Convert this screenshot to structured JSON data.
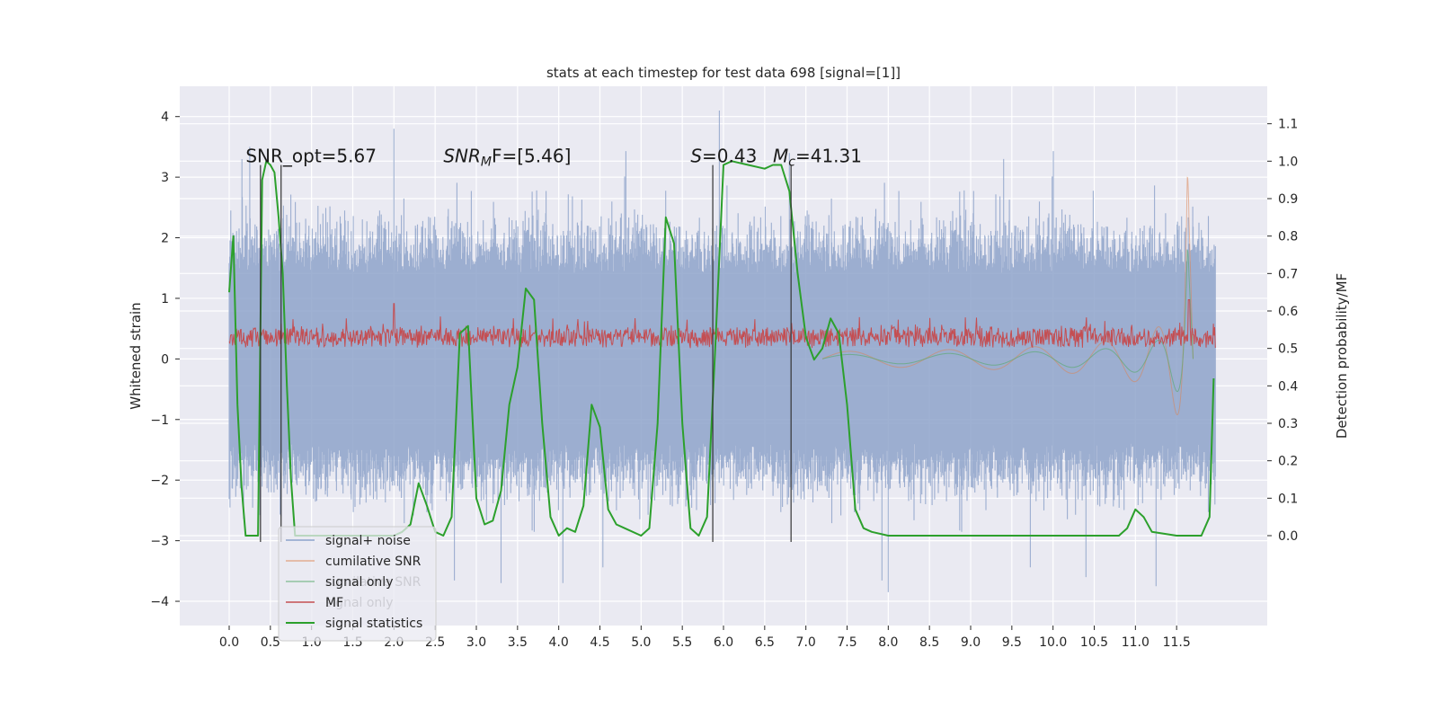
{
  "chart_data": {
    "type": "line",
    "title": "stats at each timestep for test data 698 [signal=[1]]",
    "ylabel": "Whitened strain",
    "y2label": "Detection probability/MF",
    "xlim": [
      -0.6,
      12.6
    ],
    "ylim": [
      -4.4,
      4.5
    ],
    "y2lim": [
      -0.24,
      1.2
    ],
    "grid": true,
    "x_ticks": [
      "0.0",
      "0.5",
      "1.0",
      "1.5",
      "2.0",
      "2.5",
      "3.0",
      "3.5",
      "4.0",
      "4.5",
      "5.0",
      "5.5",
      "6.0",
      "6.5",
      "7.0",
      "7.5",
      "8.0",
      "8.5",
      "9.0",
      "9.5",
      "10.0",
      "10.5",
      "11.0",
      "11.5"
    ],
    "y_ticks": [
      "4",
      "3",
      "2",
      "1",
      "0",
      "−1",
      "−2",
      "−3",
      "−4"
    ],
    "y2_ticks": [
      "1.1",
      "1.0",
      "0.9",
      "0.8",
      "0.7",
      "0.6",
      "0.5",
      "0.4",
      "0.3",
      "0.2",
      "0.1",
      "0.0"
    ],
    "annotations": [
      {
        "text": "SNR_opt=5.67",
        "x": 0.2
      },
      {
        "text": "SNR",
        "sub": "M",
        "suffix": "F=[5.46]",
        "italic": true,
        "x": 2.6
      },
      {
        "text": "S",
        "suffix": "=0.43",
        "italic": true,
        "x": 5.6
      },
      {
        "text": "M",
        "sub": "c",
        "suffix": "=41.31",
        "italic": true,
        "x": 6.6
      }
    ],
    "vlines": [
      0.38,
      0.63,
      5.87,
      6.82
    ],
    "series": [
      {
        "name": "signal+ noise",
        "color": "#4c72b0",
        "description": "noise band roughly between -2.6 and 2.6, spikes up to 4.1 near x=5.9"
      },
      {
        "name": "cumilative SNR",
        "color": "#dd8452",
        "description": "chirp-like oscillation growing toward merger near x=11.65"
      },
      {
        "name": "signal only",
        "color": "#55a868",
        "description": "oscillation with growing amplitude toward x=11.65"
      },
      {
        "name": "MF",
        "color": "#c44e52",
        "description": "matched filter output ~0.5 to 0.6 on right axis"
      },
      {
        "name": "signal statistics",
        "color": "#2ca02c",
        "axis": "right",
        "x": [
          0.0,
          0.05,
          0.1,
          0.15,
          0.2,
          0.25,
          0.3,
          0.35,
          0.4,
          0.45,
          0.5,
          0.55,
          0.6,
          0.65,
          0.7,
          0.75,
          0.8,
          0.9,
          1.0,
          1.2,
          1.4,
          1.6,
          1.8,
          2.0,
          2.1,
          2.2,
          2.3,
          2.4,
          2.5,
          2.6,
          2.7,
          2.8,
          2.9,
          3.0,
          3.1,
          3.2,
          3.3,
          3.4,
          3.5,
          3.6,
          3.7,
          3.8,
          3.9,
          4.0,
          4.1,
          4.2,
          4.3,
          4.4,
          4.5,
          4.6,
          4.7,
          4.8,
          5.0,
          5.1,
          5.2,
          5.3,
          5.4,
          5.5,
          5.6,
          5.7,
          5.8,
          5.9,
          6.0,
          6.1,
          6.3,
          6.5,
          6.6,
          6.7,
          6.8,
          6.9,
          7.0,
          7.1,
          7.2,
          7.3,
          7.4,
          7.5,
          7.6,
          7.7,
          7.8,
          8.0,
          8.5,
          9.0,
          10.0,
          10.5,
          10.8,
          10.9,
          11.0,
          11.1,
          11.2,
          11.5,
          11.7,
          11.8,
          11.9,
          11.95
        ],
        "y": [
          0.65,
          0.8,
          0.35,
          0.13,
          0.0,
          0.0,
          0.0,
          0.0,
          0.95,
          1.0,
          0.99,
          0.97,
          0.85,
          0.7,
          0.4,
          0.15,
          0.0,
          0.0,
          0.0,
          0.0,
          0.0,
          0.0,
          0.0,
          0.0,
          0.01,
          0.03,
          0.14,
          0.08,
          0.01,
          0.0,
          0.05,
          0.54,
          0.56,
          0.1,
          0.03,
          0.04,
          0.12,
          0.35,
          0.45,
          0.66,
          0.63,
          0.3,
          0.05,
          0.0,
          0.02,
          0.01,
          0.08,
          0.35,
          0.29,
          0.07,
          0.03,
          0.02,
          0.0,
          0.02,
          0.3,
          0.85,
          0.78,
          0.3,
          0.02,
          0.0,
          0.05,
          0.5,
          0.99,
          1.0,
          0.99,
          0.98,
          0.99,
          0.99,
          0.92,
          0.7,
          0.53,
          0.47,
          0.5,
          0.58,
          0.54,
          0.35,
          0.07,
          0.02,
          0.01,
          0.0,
          0.0,
          0.0,
          0.0,
          0.0,
          0.0,
          0.02,
          0.07,
          0.05,
          0.01,
          0.0,
          0.0,
          0.0,
          0.05,
          0.42
        ]
      }
    ],
    "legend": {
      "placement": "lower-left",
      "entries": [
        {
          "label": "signal+ noise",
          "color": "#4c72b0"
        },
        {
          "label": "cumilative SNR",
          "color": "#dd8452"
        },
        {
          "label": "signal only",
          "color": "#55a868"
        },
        {
          "label": "MF",
          "color": "#c44e52"
        },
        {
          "label": "signal statistics",
          "color": "#2ca02c"
        }
      ],
      "ghost_entries": [
        "cumilative SNR",
        "signal only"
      ]
    }
  }
}
